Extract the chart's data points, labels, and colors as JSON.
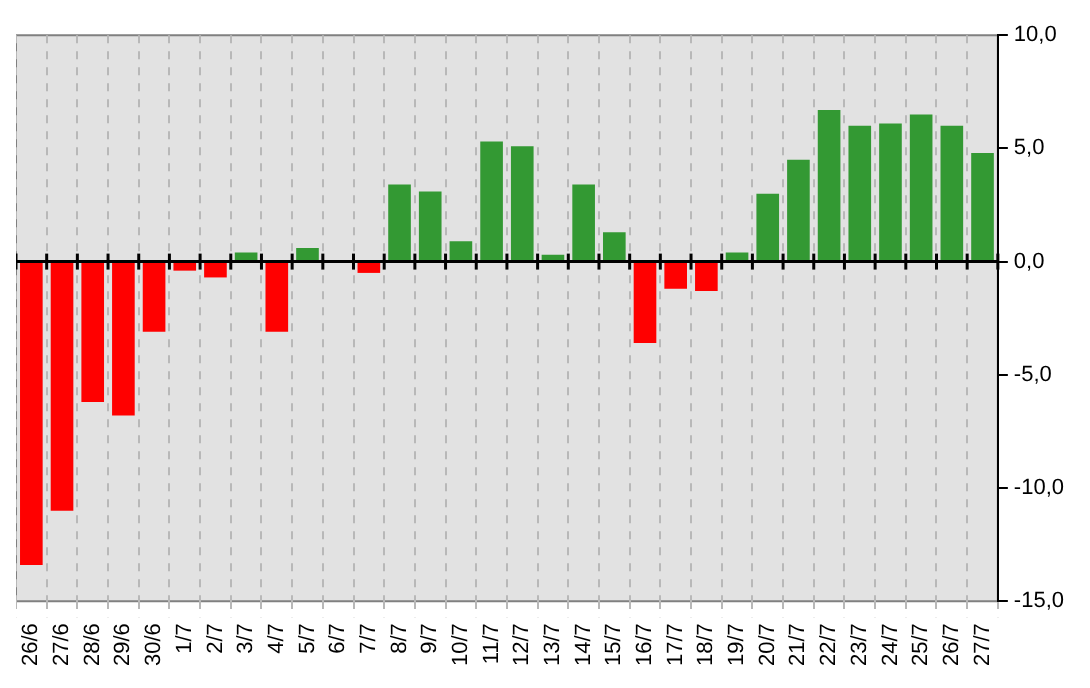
{
  "chart_data": {
    "type": "bar",
    "categories": [
      "26/6",
      "27/6",
      "28/6",
      "29/6",
      "30/6",
      "1/7",
      "2/7",
      "3/7",
      "4/7",
      "5/7",
      "6/7",
      "7/7",
      "8/7",
      "9/7",
      "10/7",
      "11/7",
      "12/7",
      "13/7",
      "14/7",
      "15/7",
      "16/7",
      "17/7",
      "18/7",
      "19/7",
      "20/7",
      "21/7",
      "22/7",
      "23/7",
      "24/7",
      "25/7",
      "26/7",
      "27/7"
    ],
    "values": [
      -13.4,
      -11.0,
      -6.2,
      -6.8,
      -3.1,
      -0.4,
      -0.7,
      0.4,
      -3.1,
      0.6,
      0,
      -0.5,
      3.4,
      3.1,
      0.9,
      5.3,
      5.1,
      0.3,
      3.4,
      1.3,
      -3.6,
      -1.2,
      -1.3,
      0.4,
      3.0,
      4.5,
      6.7,
      6.0,
      6.1,
      6.5,
      6.0,
      4.8
    ],
    "colors": [
      "#ff0000",
      "#ff0000",
      "#ff0000",
      "#ff0000",
      "#ff0000",
      "#ff0000",
      "#ff0000",
      "#339933",
      "#ff0000",
      "#339933",
      "#339933",
      "#ff0000",
      "#339933",
      "#339933",
      "#339933",
      "#339933",
      "#339933",
      "#339933",
      "#339933",
      "#339933",
      "#ff0000",
      "#ff0000",
      "#ff0000",
      "#339933",
      "#339933",
      "#339933",
      "#339933",
      "#339933",
      "#339933",
      "#339933",
      "#339933",
      "#339933"
    ],
    "ylim": [
      -15,
      10
    ],
    "yticks": [
      {
        "value": -15,
        "label": "-15,0"
      },
      {
        "value": -10,
        "label": "-10,0"
      },
      {
        "value": -5,
        "label": "-5,0"
      },
      {
        "value": 0,
        "label": "0,0"
      },
      {
        "value": 5,
        "label": "5,0"
      },
      {
        "value": 10,
        "label": "10,0"
      }
    ],
    "grid": "x",
    "legend": false
  }
}
